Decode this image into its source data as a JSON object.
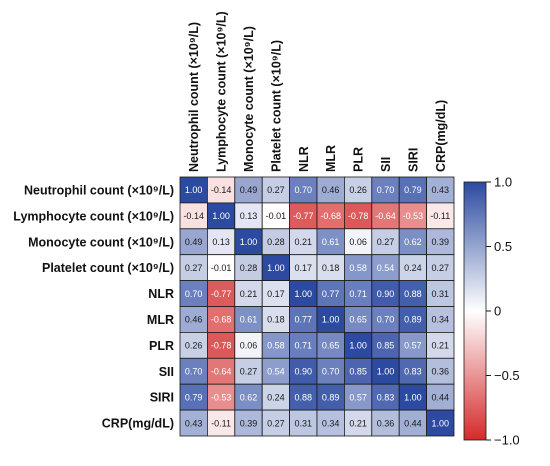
{
  "chart_data": {
    "type": "heatmap",
    "title": "",
    "row_labels": [
      "Neutrophil count (×10⁹/L)",
      "Lymphocyte count (×10⁹/L)",
      "Monocyte count (×10⁹/L)",
      "Platelet count (×10⁹/L)",
      "NLR",
      "MLR",
      "PLR",
      "SII",
      "SIRI",
      "CRP(mg/dL)"
    ],
    "col_labels": [
      "Neutrophil count (×10⁹/L)",
      "Lymphocyte count (×10⁹/L)",
      "Monocyte count (×10⁹/L)",
      "Platelet count (×10⁹/L)",
      "NLR",
      "MLR",
      "PLR",
      "SII",
      "SIRI",
      "CRP(mg/dL)"
    ],
    "values": [
      [
        1.0,
        -0.14,
        0.49,
        0.27,
        0.7,
        0.46,
        0.26,
        0.7,
        0.79,
        0.43
      ],
      [
        -0.14,
        1.0,
        0.13,
        -0.01,
        -0.77,
        -0.68,
        -0.78,
        -0.64,
        -0.53,
        -0.11
      ],
      [
        0.49,
        0.13,
        1.0,
        0.28,
        0.21,
        0.61,
        0.06,
        0.27,
        0.62,
        0.39
      ],
      [
        0.27,
        -0.01,
        0.28,
        1.0,
        0.17,
        0.18,
        0.58,
        0.54,
        0.24,
        0.27
      ],
      [
        0.7,
        -0.77,
        0.21,
        0.17,
        1.0,
        0.77,
        0.71,
        0.9,
        0.88,
        0.31
      ],
      [
        0.46,
        -0.68,
        0.61,
        0.18,
        0.77,
        1.0,
        0.65,
        0.7,
        0.89,
        0.34
      ],
      [
        0.26,
        -0.78,
        0.06,
        0.58,
        0.71,
        0.65,
        1.0,
        0.85,
        0.57,
        0.21
      ],
      [
        0.7,
        -0.64,
        0.27,
        0.54,
        0.9,
        0.7,
        0.85,
        1.0,
        0.83,
        0.36
      ],
      [
        0.79,
        -0.53,
        0.62,
        0.24,
        0.88,
        0.89,
        0.57,
        0.83,
        1.0,
        0.44
      ],
      [
        0.43,
        -0.11,
        0.39,
        0.27,
        0.31,
        0.34,
        0.21,
        0.36,
        0.44,
        1.0
      ]
    ],
    "value_range": [
      -1.0,
      1.0
    ],
    "colorbar": {
      "ticks": [
        1.0,
        0.5,
        0,
        -0.5,
        -1.0
      ],
      "tick_labels": [
        "1.0",
        "0.5",
        "0",
        "−0.5",
        "−1.0"
      ],
      "placement": "right"
    },
    "colors": {
      "positive": "#2c4aa0",
      "neutral": "#ffffff",
      "negative": "#d42a2a"
    },
    "grid": true,
    "legend": "colorbar-right"
  }
}
